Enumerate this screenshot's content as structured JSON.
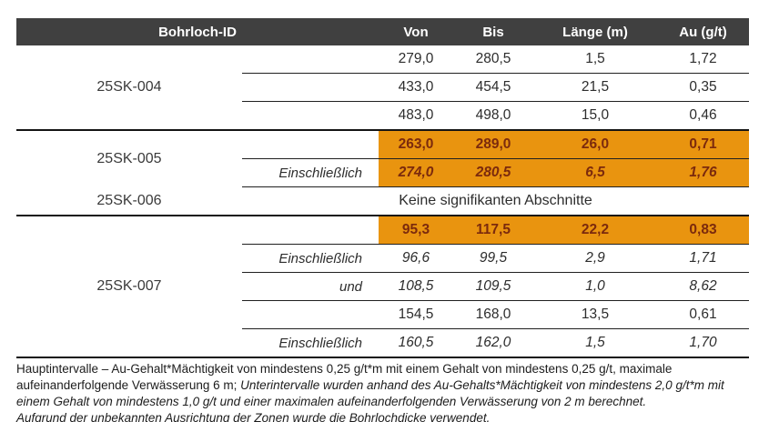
{
  "colors": {
    "header_bg": "#404040",
    "header_text": "#ffffff",
    "highlight_bg": "#E9940F",
    "highlight_text": "#7B2A0D",
    "body_text": "#2D2D2D",
    "line_dark": "#141414"
  },
  "table": {
    "columns": [
      "Bohrloch-ID",
      "Von",
      "Bis",
      "Länge (m)",
      "Au (g/t)"
    ],
    "groups": [
      {
        "id": "25SK-004",
        "divider": "none",
        "rows": [
          {
            "qualifier": "",
            "von": "279,0",
            "bis": "280,5",
            "laenge": "1,5",
            "au": "1,72",
            "highlight": false,
            "bold": false,
            "italic": false
          },
          {
            "qualifier": "",
            "von": "433,0",
            "bis": "454,5",
            "laenge": "21,5",
            "au": "0,35",
            "highlight": false,
            "bold": false,
            "italic": false
          },
          {
            "qualifier": "",
            "von": "483,0",
            "bis": "498,0",
            "laenge": "15,0",
            "au": "0,46",
            "highlight": false,
            "bold": false,
            "italic": false
          }
        ]
      },
      {
        "id": "25SK-005",
        "divider": "full",
        "rows": [
          {
            "qualifier": "",
            "von": "263,0",
            "bis": "289,0",
            "laenge": "26,0",
            "au": "0,71",
            "highlight": true,
            "bold": true,
            "italic": false
          },
          {
            "qualifier": "Einschließlich",
            "von": "274,0",
            "bis": "280,5",
            "laenge": "6,5",
            "au": "1,76",
            "highlight": true,
            "bold": true,
            "italic": true
          }
        ]
      },
      {
        "id": "25SK-006",
        "divider": "partial",
        "rows": [
          {
            "message": "Keine signifikanten Abschnitte"
          }
        ]
      },
      {
        "id": "25SK-007",
        "divider": "full",
        "rows": [
          {
            "qualifier": "",
            "von": "95,3",
            "bis": "117,5",
            "laenge": "22,2",
            "au": "0,83",
            "highlight": true,
            "bold": true,
            "italic": false
          },
          {
            "qualifier": "Einschließlich",
            "von": "96,6",
            "bis": "99,5",
            "laenge": "2,9",
            "au": "1,71",
            "highlight": false,
            "bold": false,
            "italic": true
          },
          {
            "qualifier": "und",
            "von": "108,5",
            "bis": "109,5",
            "laenge": "1,0",
            "au": "8,62",
            "highlight": false,
            "bold": false,
            "italic": true
          },
          {
            "qualifier": "",
            "von": "154,5",
            "bis": "168,0",
            "laenge": "13,5",
            "au": "0,61",
            "highlight": false,
            "bold": false,
            "italic": false
          },
          {
            "qualifier": "Einschließlich",
            "von": "160,5",
            "bis": "162,0",
            "laenge": "1,5",
            "au": "1,70",
            "highlight": false,
            "bold": false,
            "italic": true
          }
        ]
      }
    ]
  },
  "footnote": {
    "lines": [
      [
        {
          "text": "Hauptintervalle – Au-Gehalt*Mächtigkeit von mindestens 0,25 g/t*m mit einem Gehalt von mindestens 0,25 g/t, maximale",
          "italic": false
        }
      ],
      [
        {
          "text": "aufeinanderfolgende Verwässerung 6 m; ",
          "italic": false
        },
        {
          "text": "Unterintervalle wurden anhand des Au-Gehalts*Mächtigkeit von mindestens 2,0 g/t*m mit",
          "italic": true
        }
      ],
      [
        {
          "text": "einem Gehalt von mindestens 1,0 g/t und einer maximalen aufeinanderfolgenden Verwässerung von 2 m berechnet.",
          "italic": true
        }
      ],
      [
        {
          "text": "Aufgrund der unbekannten Ausrichtung der Zonen wurde die Bohrlochdicke verwendet.",
          "italic": true
        }
      ]
    ]
  }
}
